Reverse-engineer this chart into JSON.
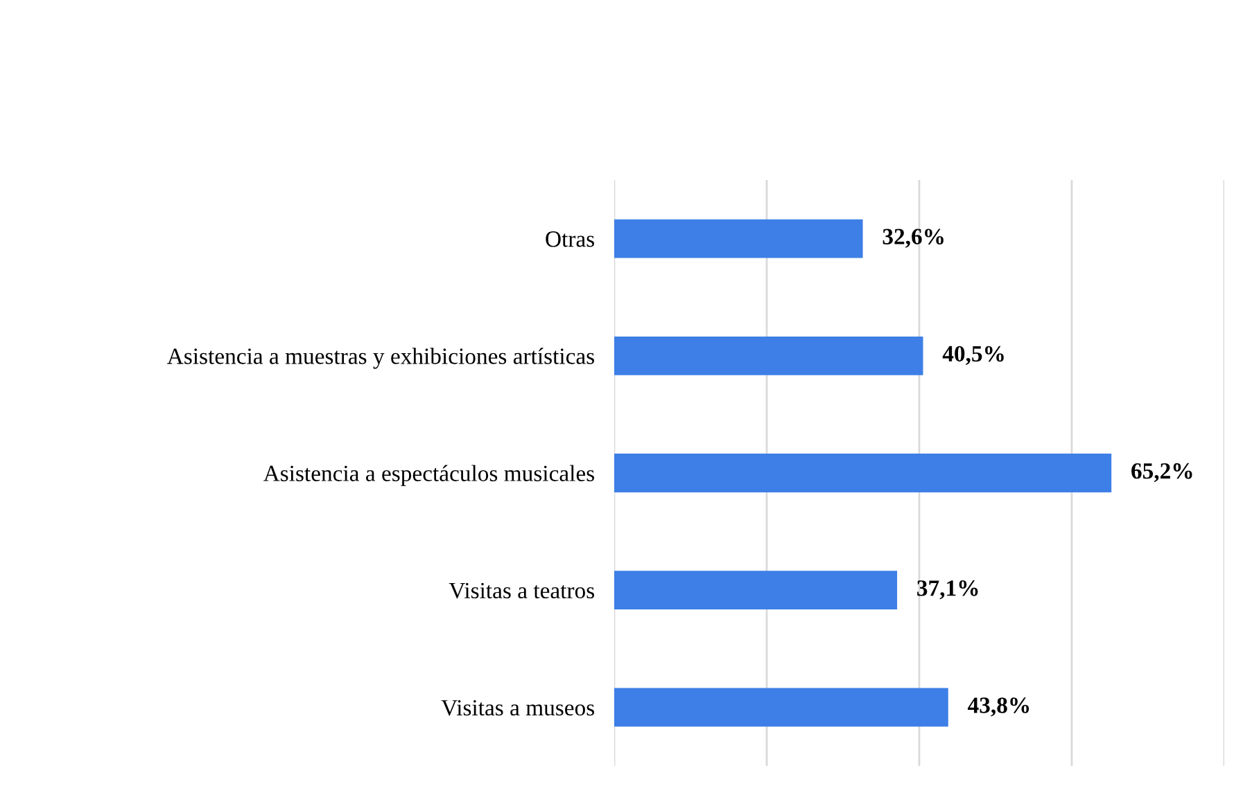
{
  "chart_data": {
    "type": "bar",
    "orientation": "horizontal",
    "categories": [
      "Otras",
      "Asistencia a muestras y exhibiciones artísticas",
      "Asistencia a espectáculos musicales",
      "Visitas a teatros",
      "Visitas a museos"
    ],
    "values": [
      32.6,
      40.5,
      65.2,
      37.1,
      43.8
    ],
    "value_labels": [
      "32,6%",
      "40,5%",
      "65,2%",
      "37,1%",
      "43,8%"
    ],
    "color": "#3d7fe6",
    "xlim": [
      0,
      80
    ],
    "xticks": [
      {
        "value": 0,
        "label": null
      },
      {
        "value": 20,
        "label": null
      },
      {
        "value": 40,
        "label": null
      },
      {
        "value": 60,
        "label": null
      },
      {
        "value": 80,
        "label": null
      }
    ],
    "grid": "x",
    "tick_labels": "y"
  }
}
